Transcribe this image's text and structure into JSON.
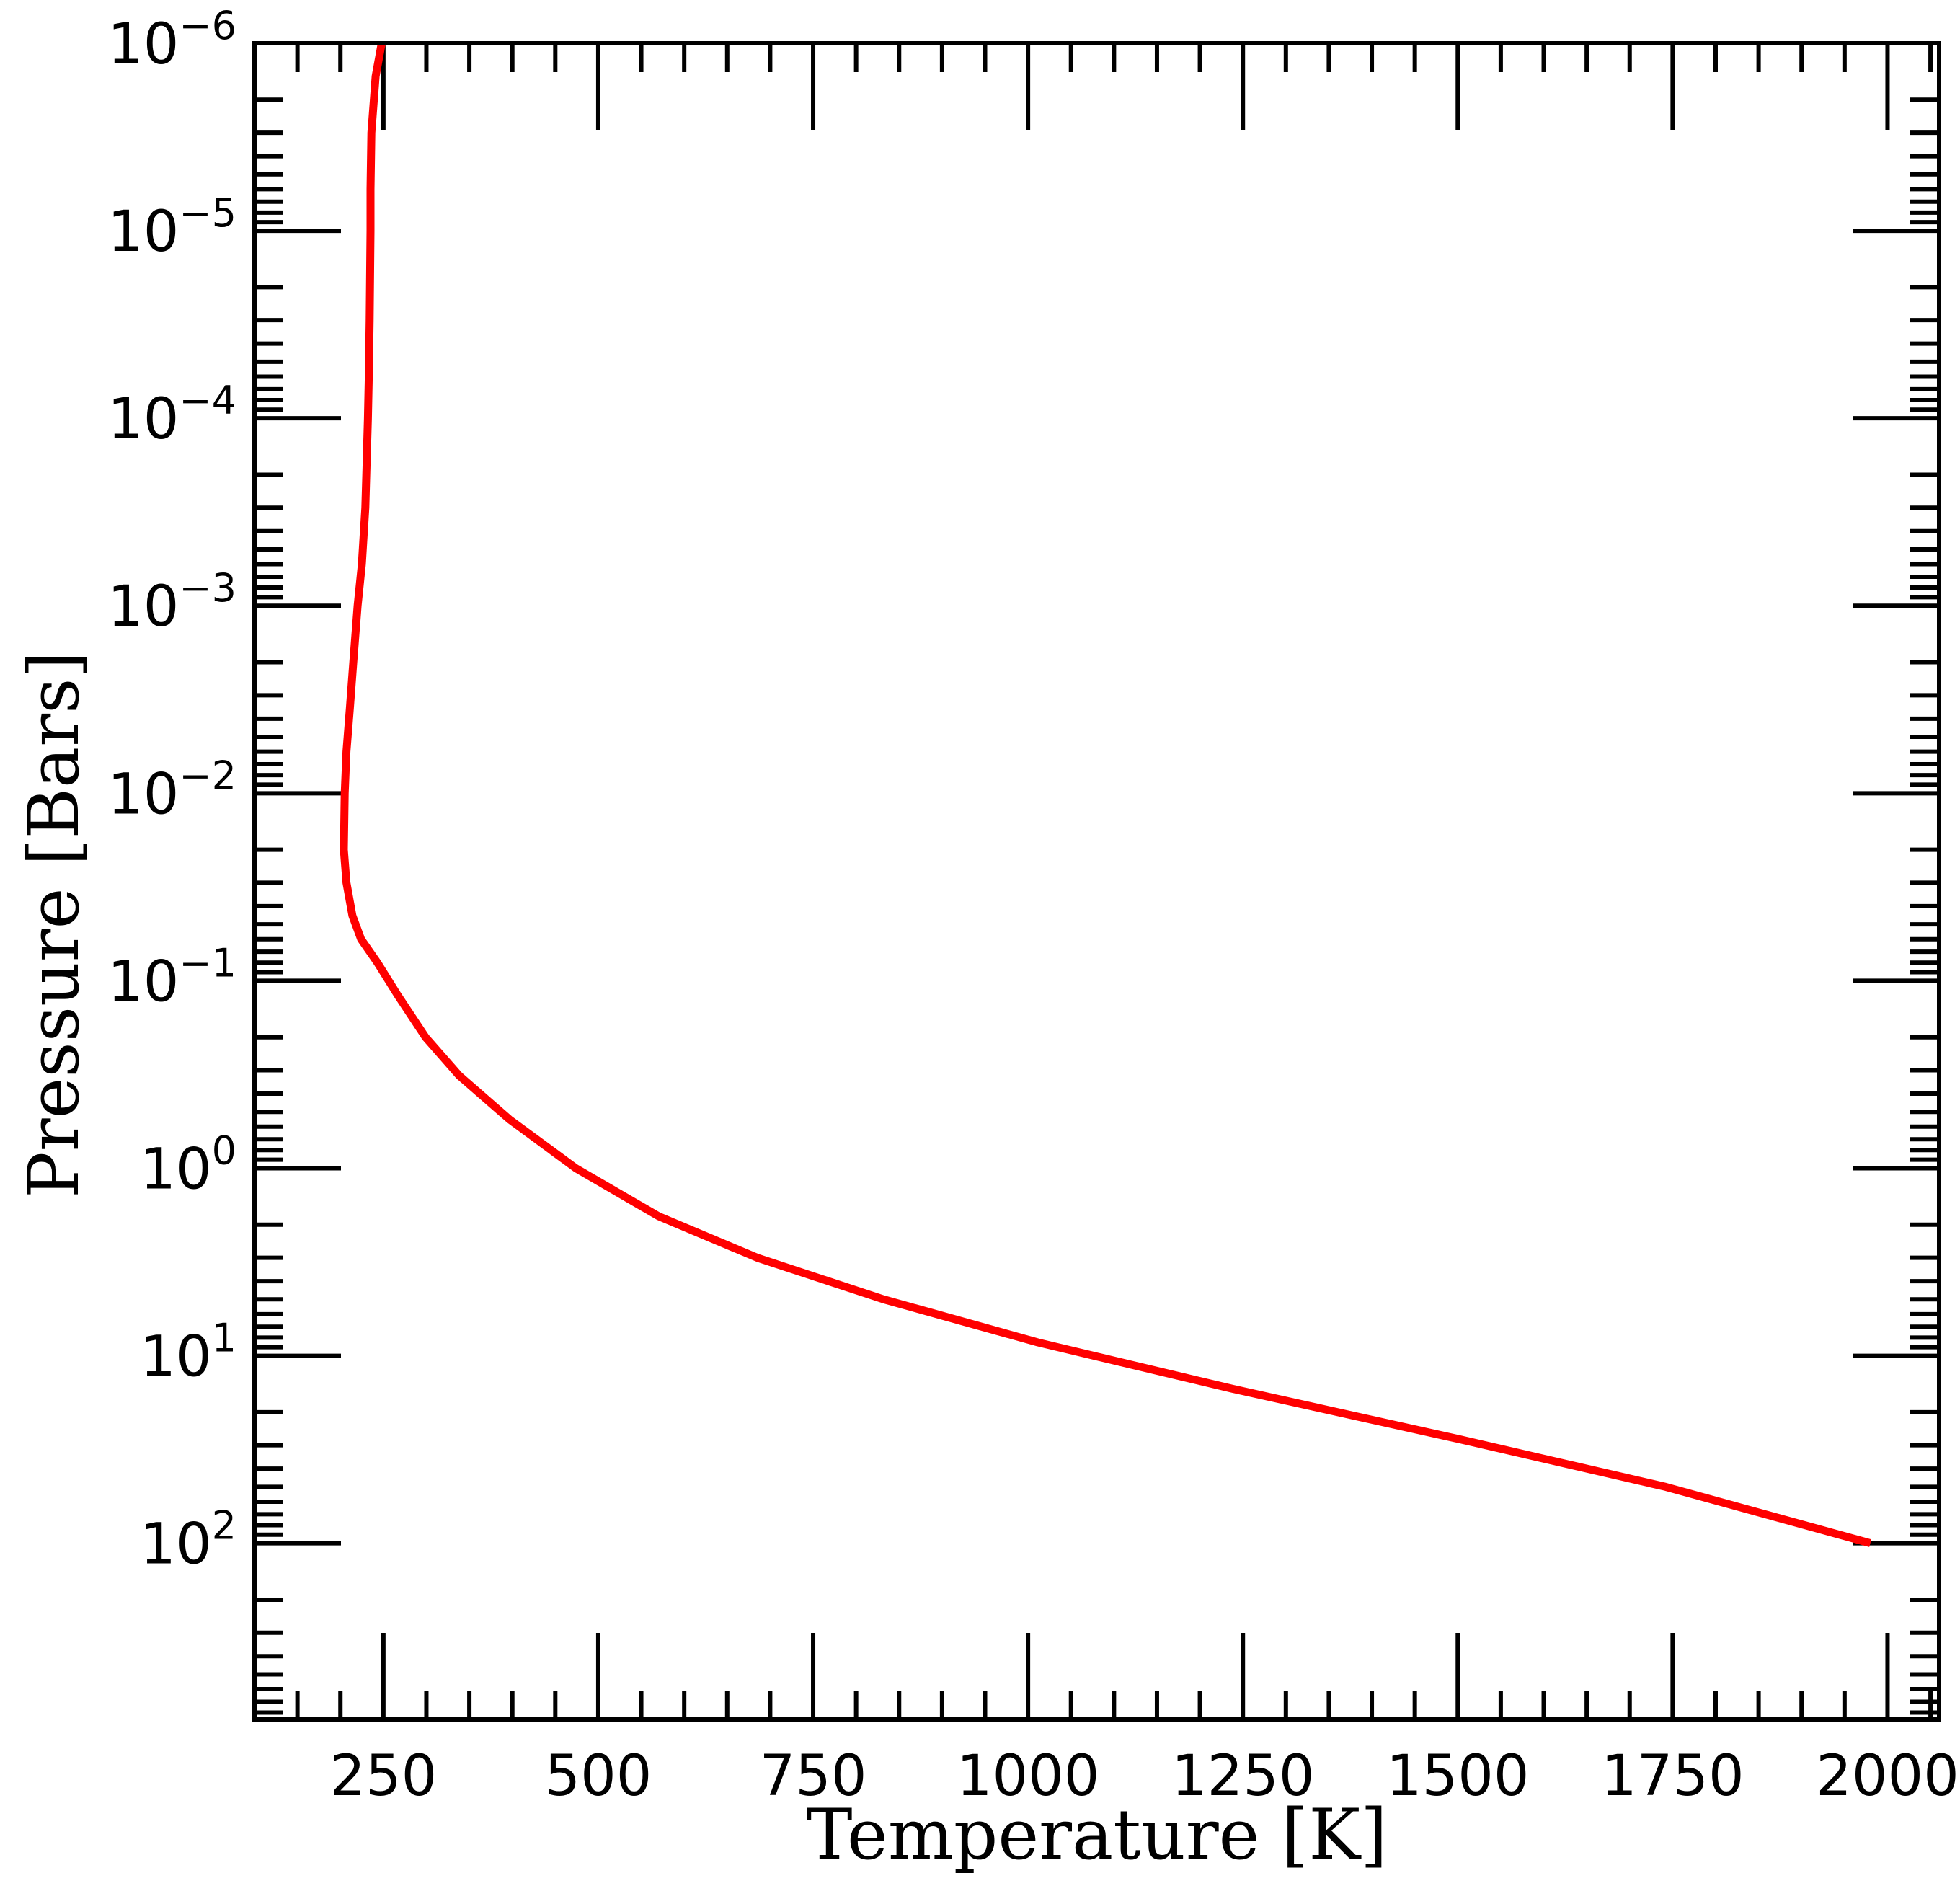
{
  "chart_data": {
    "type": "line",
    "title": "",
    "xlabel": "Temperature [K]",
    "ylabel": "Pressure [Bars]",
    "xlim": [
      100,
      2060
    ],
    "ylim": [
      1e-06,
      870
    ],
    "y_scale": "log",
    "y_inverted": true,
    "grid": false,
    "x_ticks": [
      {
        "value": 250,
        "label": "250"
      },
      {
        "value": 500,
        "label": "500"
      },
      {
        "value": 750,
        "label": "750"
      },
      {
        "value": 1000,
        "label": "1000"
      },
      {
        "value": 1250,
        "label": "1250"
      },
      {
        "value": 1500,
        "label": "1500"
      },
      {
        "value": 1750,
        "label": "1750"
      },
      {
        "value": 2000,
        "label": "2000"
      }
    ],
    "y_ticks": [
      {
        "value": 1e-06,
        "base": "10",
        "exp": "−6"
      },
      {
        "value": 1e-05,
        "base": "10",
        "exp": "−5"
      },
      {
        "value": 0.0001,
        "base": "10",
        "exp": "−4"
      },
      {
        "value": 0.001,
        "base": "10",
        "exp": "−3"
      },
      {
        "value": 0.01,
        "base": "10",
        "exp": "−2"
      },
      {
        "value": 0.1,
        "base": "10",
        "exp": "−1"
      },
      {
        "value": 1,
        "base": "10",
        "exp": "0"
      },
      {
        "value": 10,
        "base": "10",
        "exp": "1"
      },
      {
        "value": 100,
        "base": "10",
        "exp": "2"
      }
    ],
    "series": [
      {
        "color": "#ff0000",
        "x": [
          248,
          241,
          236,
          235,
          235,
          234,
          233,
          232,
          229,
          225,
          220,
          215,
          211,
          207,
          205,
          204,
          207,
          214,
          224,
          243,
          267,
          299,
          338,
          397,
          474,
          570,
          685,
          832,
          1012,
          1238,
          1504,
          1742,
          1980
        ],
        "y": [
          1e-06,
          1.5e-06,
          3e-06,
          6e-06,
          1e-05,
          3e-05,
          6e-05,
          0.0001,
          0.0003,
          0.0006,
          0.001,
          0.002,
          0.0035,
          0.006,
          0.01,
          0.02,
          0.03,
          0.045,
          0.06,
          0.08,
          0.12,
          0.2,
          0.32,
          0.55,
          1,
          1.8,
          3,
          5,
          8.5,
          15,
          28,
          50,
          100
        ]
      }
    ]
  }
}
